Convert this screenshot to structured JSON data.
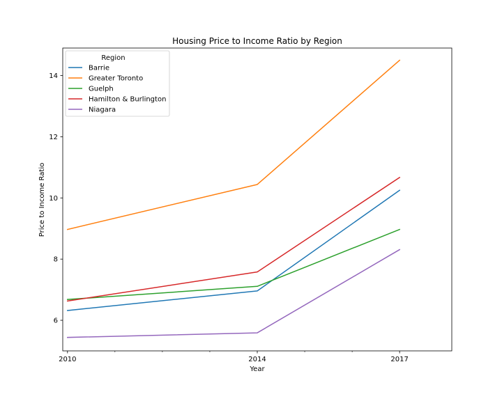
{
  "chart_data": {
    "type": "line",
    "title": "Housing Price to Income Ratio by Region",
    "xlabel": "Year",
    "ylabel": "Price to Income Ratio",
    "x": [
      2010,
      2014,
      2017
    ],
    "xlim": [
      2009.9,
      2018.1
    ],
    "ylim": [
      5.0,
      14.9
    ],
    "xticks": [
      2010,
      2014,
      2017
    ],
    "yticks": [
      6,
      8,
      10,
      12,
      14
    ],
    "grid": false,
    "legend": {
      "title": "Region",
      "placement": "top-left"
    },
    "series": [
      {
        "name": "Barrie",
        "color": "#1f77b4",
        "values": [
          6.32,
          6.96,
          10.25
        ]
      },
      {
        "name": "Greater Toronto",
        "color": "#ff7f0e",
        "values": [
          8.97,
          10.44,
          14.5
        ]
      },
      {
        "name": "Guelph",
        "color": "#2ca02c",
        "values": [
          6.68,
          7.11,
          8.97
        ]
      },
      {
        "name": "Hamilton & Burlington",
        "color": "#d62728",
        "values": [
          6.63,
          7.58,
          10.67
        ]
      },
      {
        "name": "Niagara",
        "color": "#9467bd",
        "values": [
          5.44,
          5.59,
          8.31
        ]
      }
    ]
  }
}
